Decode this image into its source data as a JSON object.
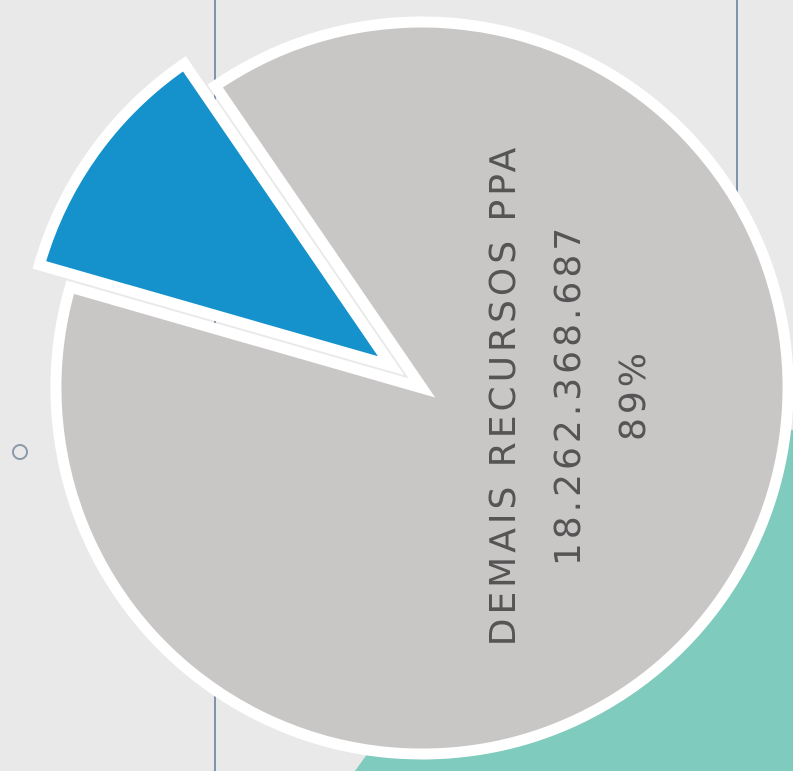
{
  "chart_data": {
    "type": "pie",
    "categories": [
      "DEMAIS RECURSOS PPA",
      null
    ],
    "values": [
      89,
      11
    ],
    "value_labels": [
      "89%",
      null
    ],
    "amount_labels": [
      "18.262.368.687",
      null
    ],
    "colors": [
      "#c9c6c6",
      "#1591cb"
    ]
  }
}
